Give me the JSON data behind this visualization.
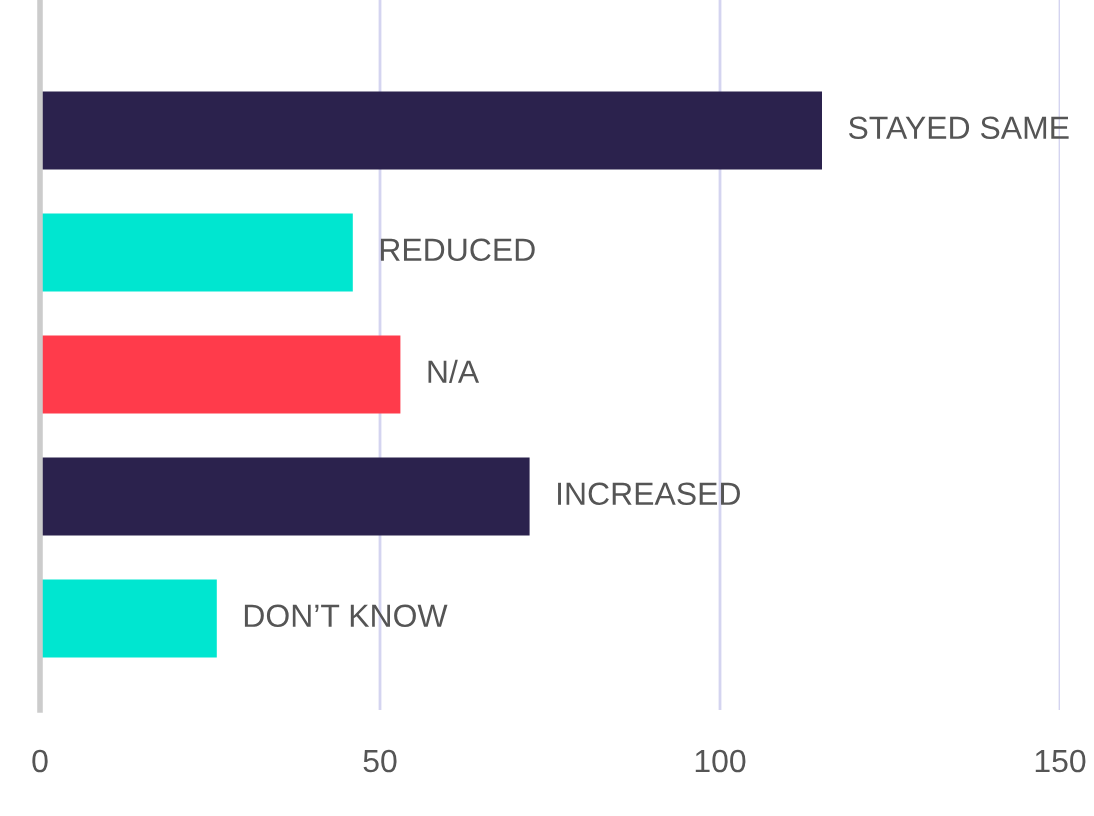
{
  "chart_data": {
    "type": "bar",
    "orientation": "horizontal",
    "categories": [
      "STAYED SAME",
      "REDUCED",
      "N/A",
      "INCREASED",
      "DON’T KNOW"
    ],
    "values": [
      115,
      46,
      53,
      72,
      26
    ],
    "colors": [
      "#2b224d",
      "#00e6d0",
      "#ff3b4b",
      "#2b224d",
      "#00e6d0"
    ],
    "xlim": [
      0,
      150
    ],
    "xticks": [
      0,
      50,
      100,
      150
    ],
    "grid": "x",
    "tick_labels": "x"
  }
}
